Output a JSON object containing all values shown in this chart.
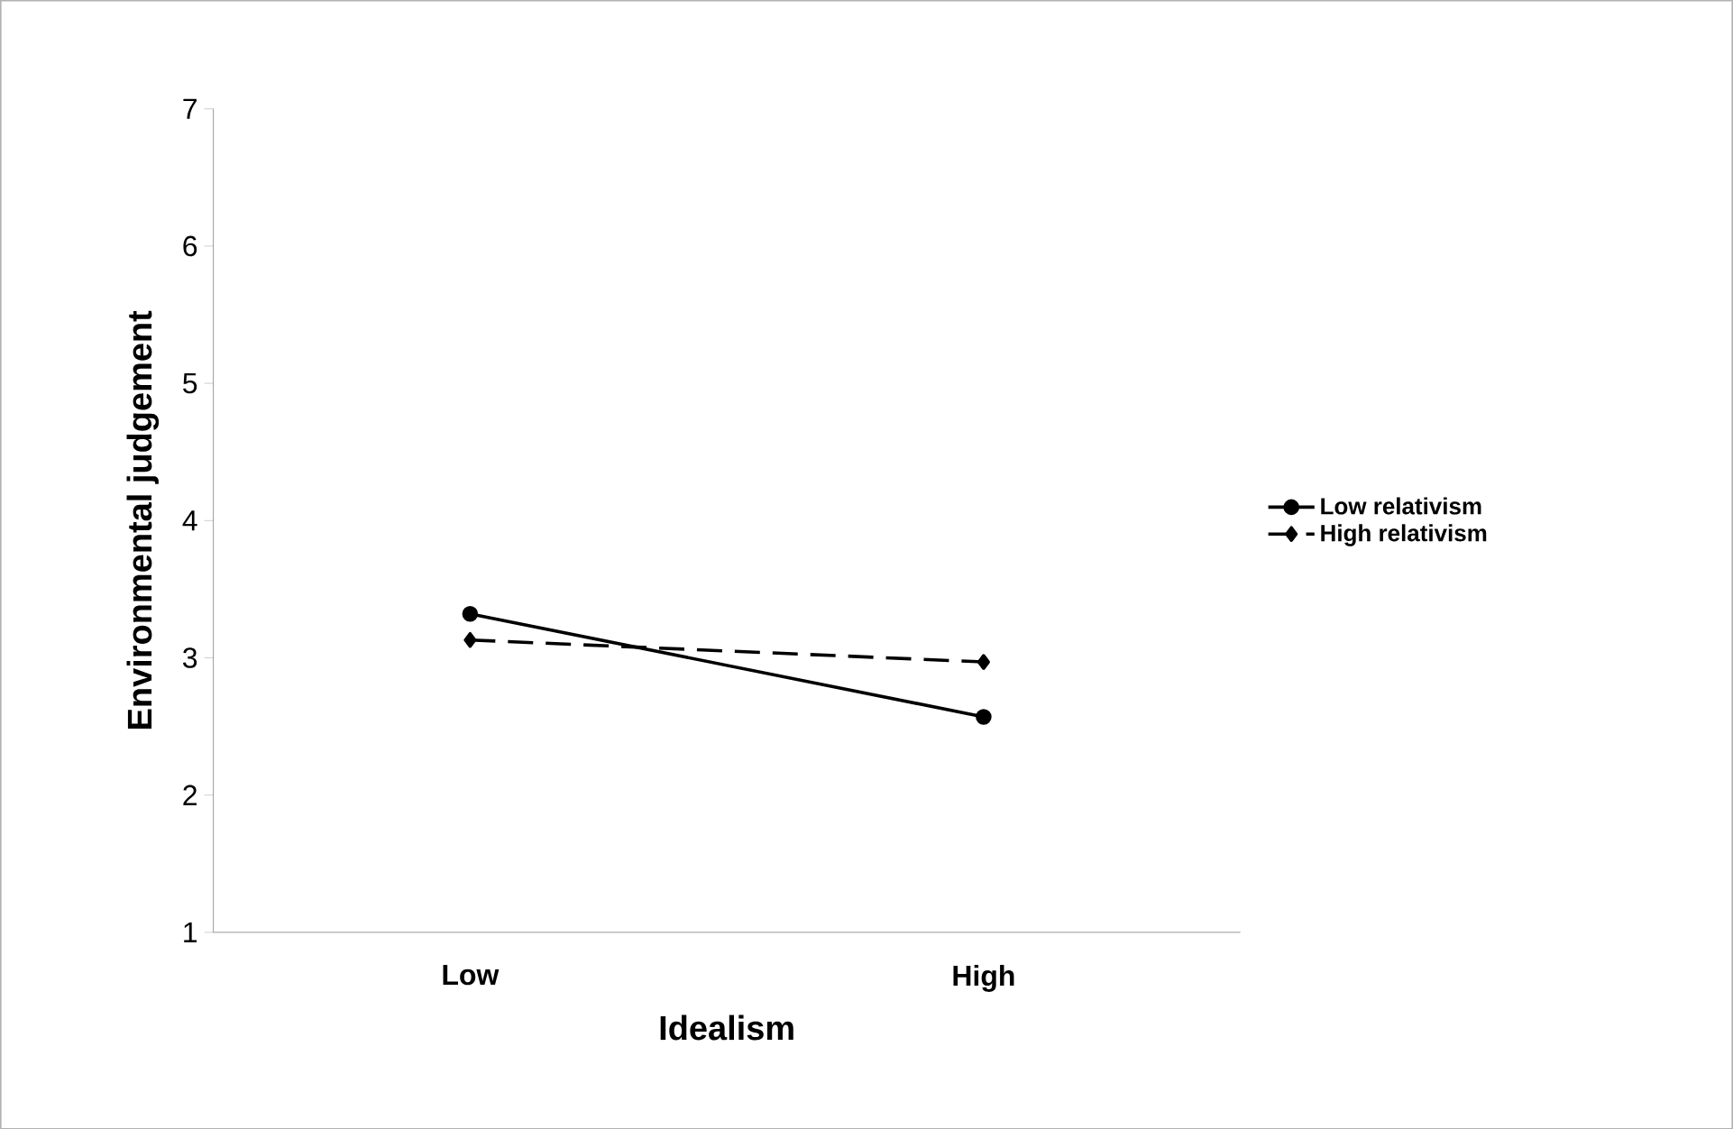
{
  "chart_data": {
    "type": "line",
    "xlabel": "Idealism",
    "ylabel": "Environmental judgement",
    "categories": [
      "Low",
      "High"
    ],
    "series": [
      {
        "name": "Low relativism",
        "color": "#000000",
        "values": [
          3.32,
          2.57
        ],
        "marker": "circle",
        "line_style": "solid"
      },
      {
        "name": "High relativism",
        "color": "#000000",
        "values": [
          3.13,
          2.97
        ],
        "marker": "diamond",
        "line_style": "dashed"
      }
    ],
    "ylim": [
      1,
      7
    ],
    "yticks": [
      1,
      2,
      3,
      4,
      5,
      6,
      7
    ],
    "grid": false,
    "legend": "right"
  }
}
